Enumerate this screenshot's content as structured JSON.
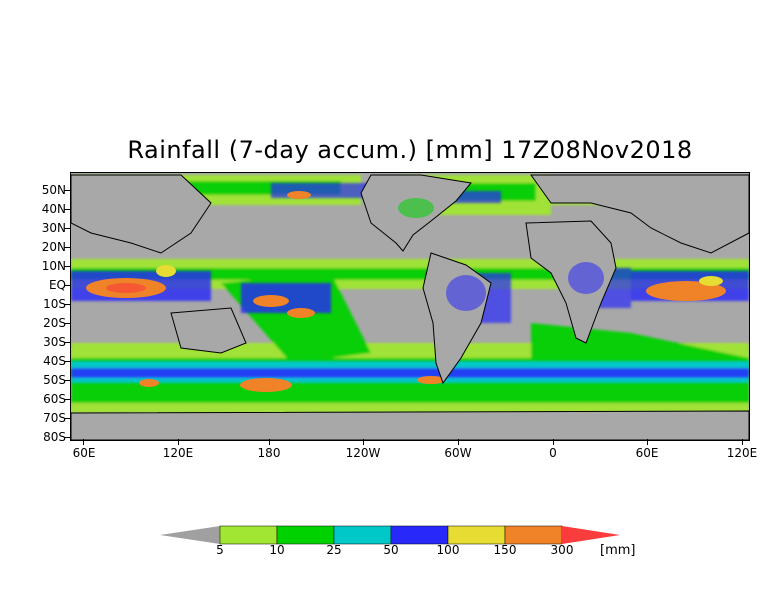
{
  "title": "Rainfall (7-day accum.) [mm] 17Z08Nov2018",
  "lat_labels": [
    "50N",
    "40N",
    "30N",
    "20N",
    "10N",
    "EQ",
    "10S",
    "20S",
    "30S",
    "40S",
    "50S",
    "60S",
    "70S",
    "80S"
  ],
  "lon_labels": [
    "60E",
    "120E",
    "180",
    "120W",
    "60W",
    "0",
    "60E",
    "120E"
  ],
  "colorbar": {
    "unit": "[mm]",
    "thresholds": [
      "5",
      "10",
      "25",
      "50",
      "100",
      "150",
      "300"
    ],
    "colors": [
      "#a0a0a0",
      "#a0e632",
      "#00d200",
      "#00c8c8",
      "#2828fa",
      "#e6dc32",
      "#f08228",
      "#fa3c3c"
    ]
  },
  "colors": {
    "ocean_dry": "#a8a8a8",
    "coastline": "#000000"
  }
}
